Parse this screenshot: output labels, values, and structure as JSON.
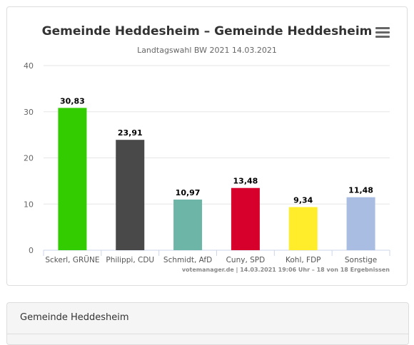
{
  "chart_data": {
    "type": "bar",
    "title": "Gemeinde Heddesheim – Gemeinde Heddesheim",
    "subtitle": "Landtagswahl BW 2021 14.03.2021",
    "categories": [
      "Sckerl, GRÜNE",
      "Philippi, CDU",
      "Schmidt, AfD",
      "Cuny, SPD",
      "Kohl, FDP",
      "Sonstige"
    ],
    "values": [
      30.83,
      23.91,
      10.97,
      13.48,
      9.34,
      11.48
    ],
    "data_labels": [
      "30,83",
      "23,91",
      "10,97",
      "13,48",
      "9,34",
      "11,48"
    ],
    "colors": [
      "#33cc00",
      "#494949",
      "#6cb5a7",
      "#d7002d",
      "#ffed2c",
      "#a9bde2"
    ],
    "ylim": [
      0,
      40
    ],
    "yticks": [
      0,
      10,
      20,
      30,
      40
    ],
    "grid": true,
    "credits": "votemanager.de | 14.03.2021 19:06 Uhr – 18 von 18 Ergebnissen"
  },
  "menu": {
    "icon": "hamburger-menu-icon"
  },
  "panel": {
    "title": "Gemeinde Heddesheim"
  }
}
